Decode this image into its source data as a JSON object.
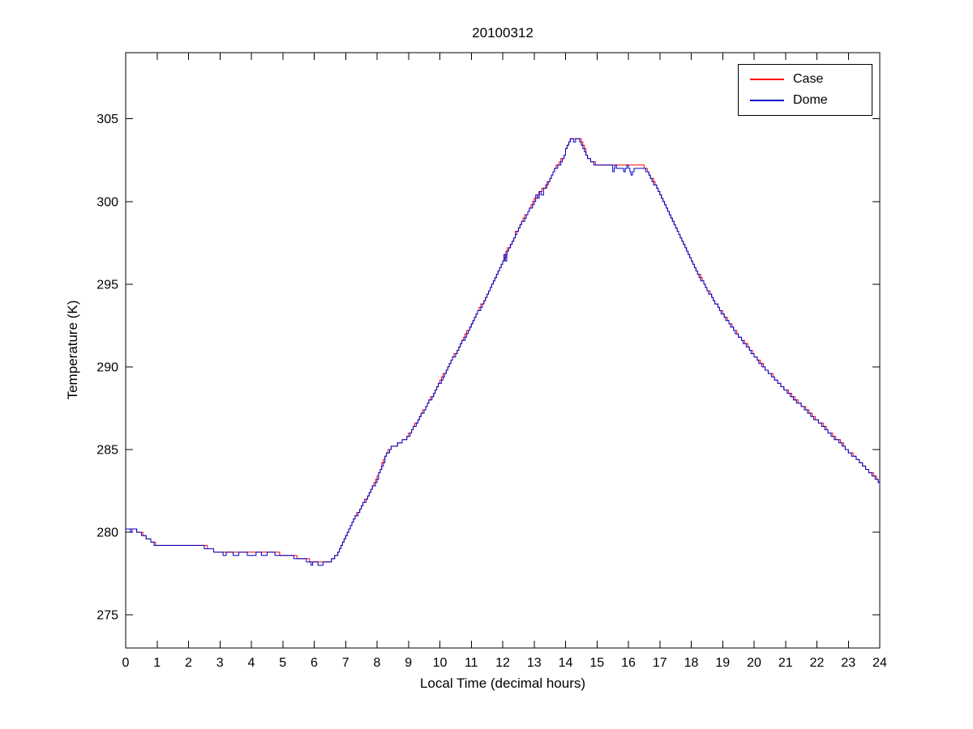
{
  "chart_data": {
    "type": "line",
    "title": "20100312",
    "xlabel": "Local Time (decimal hours)",
    "ylabel": "Temperature (K)",
    "xlim": [
      0,
      24
    ],
    "ylim": [
      273,
      309
    ],
    "xticks": [
      0,
      1,
      2,
      3,
      4,
      5,
      6,
      7,
      8,
      9,
      10,
      11,
      12,
      13,
      14,
      15,
      16,
      17,
      18,
      19,
      20,
      21,
      22,
      23,
      24
    ],
    "yticks": [
      275,
      280,
      285,
      290,
      295,
      300,
      305
    ],
    "grid": false,
    "legend_position": "top-right",
    "quantization_step_K": 0.2,
    "sample_interval_hours": 0.05,
    "series": [
      {
        "name": "Case",
        "color": "#ff0000",
        "points": [
          [
            0.0,
            280.2
          ],
          [
            0.3,
            280.15
          ],
          [
            0.45,
            280.0
          ],
          [
            0.55,
            279.8
          ],
          [
            0.7,
            279.6
          ],
          [
            0.85,
            279.35
          ],
          [
            1.0,
            279.2
          ],
          [
            2.45,
            279.2
          ],
          [
            2.6,
            279.05
          ],
          [
            2.8,
            278.9
          ],
          [
            3.0,
            278.85
          ],
          [
            4.6,
            278.8
          ],
          [
            4.9,
            278.7
          ],
          [
            5.2,
            278.6
          ],
          [
            5.5,
            278.45
          ],
          [
            5.8,
            278.3
          ],
          [
            6.0,
            278.2
          ],
          [
            6.35,
            278.15
          ],
          [
            6.5,
            278.25
          ],
          [
            6.65,
            278.55
          ],
          [
            6.8,
            279.0
          ],
          [
            7.0,
            279.9
          ],
          [
            7.25,
            280.8
          ],
          [
            7.5,
            281.6
          ],
          [
            7.75,
            282.4
          ],
          [
            8.0,
            283.3
          ],
          [
            8.15,
            284.1
          ],
          [
            8.3,
            284.8
          ],
          [
            8.45,
            285.15
          ],
          [
            8.7,
            285.4
          ],
          [
            8.9,
            285.7
          ],
          [
            9.1,
            286.2
          ],
          [
            9.35,
            287.0
          ],
          [
            9.6,
            287.8
          ],
          [
            9.85,
            288.6
          ],
          [
            10.1,
            289.5
          ],
          [
            10.35,
            290.4
          ],
          [
            10.6,
            291.2
          ],
          [
            10.85,
            292.1
          ],
          [
            11.1,
            293.0
          ],
          [
            11.35,
            293.9
          ],
          [
            11.6,
            294.8
          ],
          [
            11.85,
            295.8
          ],
          [
            12.0,
            296.4
          ],
          [
            12.1,
            297.0
          ],
          [
            12.25,
            297.4
          ],
          [
            12.4,
            298.1
          ],
          [
            12.55,
            298.6
          ],
          [
            12.7,
            299.1
          ],
          [
            12.85,
            299.6
          ],
          [
            13.0,
            300.1
          ],
          [
            13.15,
            300.55
          ],
          [
            13.35,
            300.9
          ],
          [
            13.5,
            301.35
          ],
          [
            13.65,
            302.0
          ],
          [
            13.8,
            302.3
          ],
          [
            13.95,
            302.9
          ],
          [
            14.05,
            303.4
          ],
          [
            14.15,
            303.75
          ],
          [
            14.45,
            303.75
          ],
          [
            14.55,
            303.3
          ],
          [
            14.7,
            302.7
          ],
          [
            14.85,
            302.35
          ],
          [
            15.0,
            302.2
          ],
          [
            16.45,
            302.1
          ],
          [
            16.6,
            301.8
          ],
          [
            16.75,
            301.3
          ],
          [
            16.9,
            300.8
          ],
          [
            17.05,
            300.2
          ],
          [
            17.25,
            299.4
          ],
          [
            17.5,
            298.4
          ],
          [
            17.75,
            297.4
          ],
          [
            18.0,
            296.4
          ],
          [
            18.25,
            295.5
          ],
          [
            18.5,
            294.7
          ],
          [
            18.75,
            293.9
          ],
          [
            19.0,
            293.2
          ],
          [
            19.25,
            292.5
          ],
          [
            19.5,
            291.9
          ],
          [
            19.75,
            291.3
          ],
          [
            20.0,
            290.7
          ],
          [
            20.3,
            290.0
          ],
          [
            20.6,
            289.4
          ],
          [
            20.9,
            288.8
          ],
          [
            21.2,
            288.2
          ],
          [
            21.5,
            287.7
          ],
          [
            21.8,
            287.1
          ],
          [
            22.1,
            286.6
          ],
          [
            22.4,
            286.0
          ],
          [
            22.7,
            285.5
          ],
          [
            23.0,
            284.9
          ],
          [
            23.3,
            284.4
          ],
          [
            23.6,
            283.8
          ],
          [
            23.85,
            283.3
          ],
          [
            24.0,
            282.9
          ]
        ]
      },
      {
        "name": "Dome",
        "color": "#0000cc",
        "points": [
          [
            0.0,
            280.2
          ],
          [
            0.12,
            280.15
          ],
          [
            0.15,
            280.0
          ],
          [
            0.22,
            280.15
          ],
          [
            0.3,
            280.1
          ],
          [
            0.45,
            279.95
          ],
          [
            0.55,
            279.8
          ],
          [
            0.7,
            279.6
          ],
          [
            0.85,
            279.35
          ],
          [
            1.0,
            279.15
          ],
          [
            2.45,
            279.15
          ],
          [
            2.6,
            279.0
          ],
          [
            2.8,
            278.9
          ],
          [
            3.0,
            278.8
          ],
          [
            3.15,
            278.6
          ],
          [
            3.22,
            278.8
          ],
          [
            3.55,
            278.6
          ],
          [
            3.62,
            278.8
          ],
          [
            4.1,
            278.6
          ],
          [
            4.17,
            278.8
          ],
          [
            4.45,
            278.6
          ],
          [
            4.52,
            278.8
          ],
          [
            4.6,
            278.75
          ],
          [
            4.9,
            278.65
          ],
          [
            5.2,
            278.55
          ],
          [
            5.5,
            278.4
          ],
          [
            5.8,
            278.25
          ],
          [
            5.9,
            278.05
          ],
          [
            5.97,
            278.2
          ],
          [
            6.2,
            278.0
          ],
          [
            6.28,
            278.15
          ],
          [
            6.4,
            278.1
          ],
          [
            6.5,
            278.25
          ],
          [
            6.65,
            278.55
          ],
          [
            6.8,
            279.0
          ],
          [
            7.0,
            279.9
          ],
          [
            7.25,
            280.75
          ],
          [
            7.5,
            281.55
          ],
          [
            7.75,
            282.35
          ],
          [
            8.0,
            283.25
          ],
          [
            8.15,
            284.05
          ],
          [
            8.3,
            284.75
          ],
          [
            8.45,
            285.1
          ],
          [
            8.7,
            285.35
          ],
          [
            8.9,
            285.65
          ],
          [
            9.1,
            286.15
          ],
          [
            9.35,
            286.95
          ],
          [
            9.6,
            287.75
          ],
          [
            9.85,
            288.55
          ],
          [
            10.1,
            289.45
          ],
          [
            10.35,
            290.35
          ],
          [
            10.6,
            291.15
          ],
          [
            10.85,
            292.05
          ],
          [
            11.1,
            292.95
          ],
          [
            11.35,
            293.85
          ],
          [
            11.6,
            294.75
          ],
          [
            11.85,
            295.75
          ],
          [
            12.0,
            296.35
          ],
          [
            12.04,
            296.9
          ],
          [
            12.08,
            296.4
          ],
          [
            12.14,
            297.0
          ],
          [
            12.25,
            297.35
          ],
          [
            12.4,
            298.05
          ],
          [
            12.55,
            298.55
          ],
          [
            12.7,
            299.05
          ],
          [
            12.85,
            299.55
          ],
          [
            13.0,
            300.0
          ],
          [
            13.06,
            300.45
          ],
          [
            13.11,
            300.1
          ],
          [
            13.17,
            300.55
          ],
          [
            13.25,
            300.35
          ],
          [
            13.32,
            300.85
          ],
          [
            13.5,
            301.3
          ],
          [
            13.65,
            301.95
          ],
          [
            13.8,
            302.25
          ],
          [
            13.95,
            302.85
          ],
          [
            14.05,
            303.35
          ],
          [
            14.15,
            303.75
          ],
          [
            14.22,
            303.75
          ],
          [
            14.25,
            303.55
          ],
          [
            14.32,
            303.75
          ],
          [
            14.45,
            303.7
          ],
          [
            14.55,
            303.25
          ],
          [
            14.7,
            302.65
          ],
          [
            14.85,
            302.3
          ],
          [
            15.0,
            302.15
          ],
          [
            15.45,
            302.1
          ],
          [
            15.5,
            301.75
          ],
          [
            15.57,
            302.1
          ],
          [
            15.8,
            302.05
          ],
          [
            15.85,
            301.75
          ],
          [
            15.95,
            302.1
          ],
          [
            16.08,
            301.7
          ],
          [
            16.18,
            302.05
          ],
          [
            16.45,
            302.05
          ],
          [
            16.6,
            301.75
          ],
          [
            16.75,
            301.25
          ],
          [
            16.9,
            300.75
          ],
          [
            17.05,
            300.15
          ],
          [
            17.25,
            299.35
          ],
          [
            17.5,
            298.35
          ],
          [
            17.75,
            297.35
          ],
          [
            18.0,
            296.35
          ],
          [
            18.25,
            295.45
          ],
          [
            18.5,
            294.65
          ],
          [
            18.75,
            293.85
          ],
          [
            19.0,
            293.15
          ],
          [
            19.25,
            292.45
          ],
          [
            19.5,
            291.85
          ],
          [
            19.75,
            291.25
          ],
          [
            20.0,
            290.65
          ],
          [
            20.3,
            289.95
          ],
          [
            20.6,
            289.35
          ],
          [
            20.9,
            288.75
          ],
          [
            21.2,
            288.15
          ],
          [
            21.5,
            287.65
          ],
          [
            21.8,
            287.05
          ],
          [
            22.1,
            286.55
          ],
          [
            22.4,
            285.95
          ],
          [
            22.7,
            285.45
          ],
          [
            23.0,
            284.85
          ],
          [
            23.3,
            284.35
          ],
          [
            23.6,
            283.75
          ],
          [
            23.85,
            283.25
          ],
          [
            24.0,
            282.85
          ]
        ]
      }
    ]
  }
}
